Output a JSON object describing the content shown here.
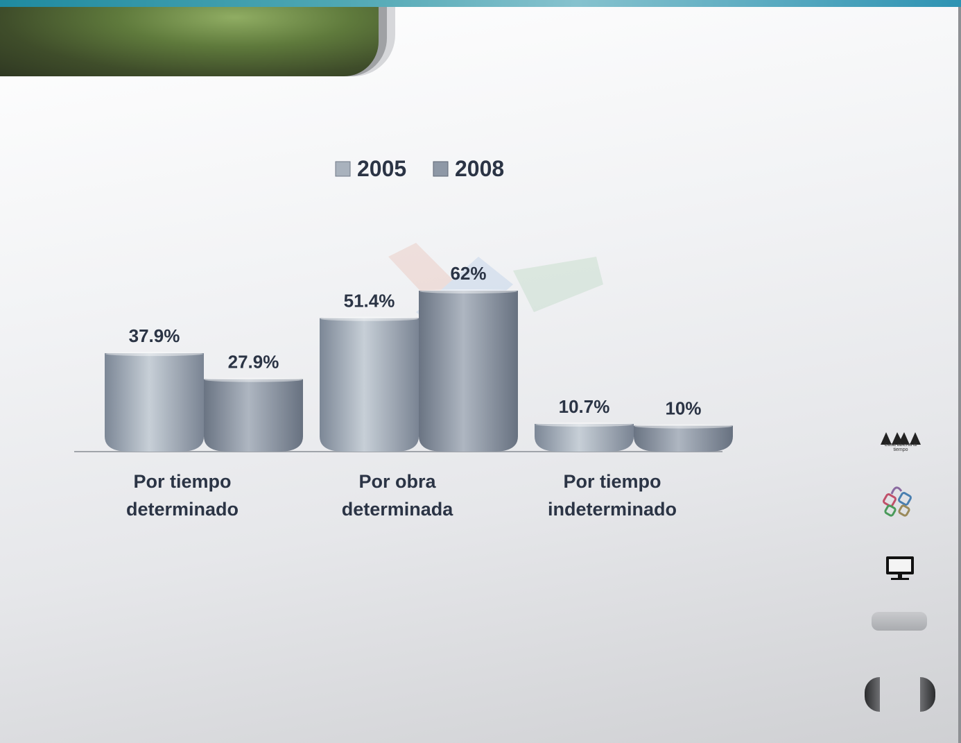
{
  "chart_data": {
    "type": "bar",
    "categories": [
      "Por tiempo determinado",
      "Por obra determinada",
      "Por tiempo indeterminado"
    ],
    "category_lines": [
      [
        "Por tiempo",
        "determinado"
      ],
      [
        "Por obra",
        "determinada"
      ],
      [
        "Por tiempo",
        "indeterminado"
      ]
    ],
    "series": [
      {
        "name": "2005",
        "values": [
          37.9,
          51.4,
          10.7
        ],
        "labels": [
          "37.9%",
          "51.4%",
          "10.7%"
        ]
      },
      {
        "name": "2008",
        "values": [
          27.9,
          62,
          10
        ],
        "labels": [
          "27.9%",
          "62%",
          "10%"
        ]
      }
    ],
    "ylim": [
      0,
      62
    ],
    "grid": false,
    "legend": "top",
    "colors": {
      "series_2005": "#a9b2bd",
      "series_2008": "#8e98a6",
      "text": "#2b3445"
    }
  },
  "side_panel": {
    "logo_caption": "Casa abierta al tiempo"
  }
}
